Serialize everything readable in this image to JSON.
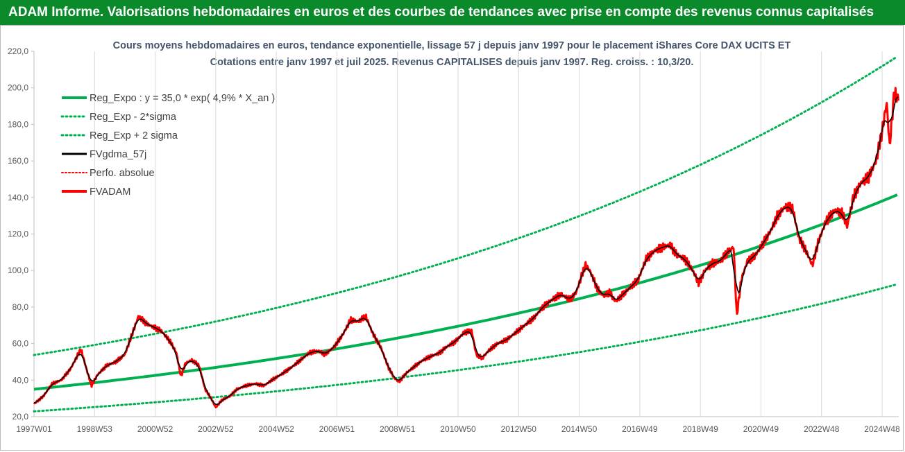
{
  "banner": {
    "text": "ADAM Informe. Valorisations hebdomadaires en euros et des courbes de tendances avec prise en compte des revenus connus capitalisés"
  },
  "chart_data": {
    "type": "line",
    "title_line1": "Cours moyens hebdomadaires en euros, tendance exponentielle, lissage 57 j depuis janv 1997  pour le placement iShares Core DAX UCITS ET",
    "title_line2": "Cotations entre janv 1997 et juil 2025.  Revenus CAPITALISES depuis janv 1997.  Reg. croiss. : 10,3/20.",
    "x_range": [
      1997.0,
      2025.55
    ],
    "x_ticks": [
      {
        "label": "1997W01",
        "x": 1997.0
      },
      {
        "label": "1998W53",
        "x": 1999.0
      },
      {
        "label": "2000W52",
        "x": 2001.0
      },
      {
        "label": "2002W52",
        "x": 2003.0
      },
      {
        "label": "2004W52",
        "x": 2005.0
      },
      {
        "label": "2006W51",
        "x": 2007.0
      },
      {
        "label": "2008W51",
        "x": 2009.0
      },
      {
        "label": "2010W50",
        "x": 2011.0
      },
      {
        "label": "2012W50",
        "x": 2013.0
      },
      {
        "label": "2014W50",
        "x": 2015.0
      },
      {
        "label": "2016W49",
        "x": 2017.0
      },
      {
        "label": "2018W49",
        "x": 2019.0
      },
      {
        "label": "2020W49",
        "x": 2021.0
      },
      {
        "label": "2022W48",
        "x": 2023.0
      },
      {
        "label": "2024W48",
        "x": 2025.0
      }
    ],
    "ylim": [
      20,
      220
    ],
    "y_ticks": [
      "20,0",
      "40,0",
      "60,0",
      "80,0",
      "100,0",
      "120,0",
      "140,0",
      "160,0",
      "180,0",
      "200,0",
      "220,0"
    ],
    "y_tick_values": [
      20,
      40,
      60,
      80,
      100,
      120,
      140,
      160,
      180,
      200,
      220
    ],
    "grid_x": true,
    "legend_position": "top-left",
    "legend": [
      {
        "key": "reg",
        "name": "Reg_Expo : y = 35,0 * exp( 4,9% *  X_an )"
      },
      {
        "key": "low",
        "name": "Reg_Exp - 2*sigma"
      },
      {
        "key": "high",
        "name": "Reg_Exp + 2 sigma"
      },
      {
        "key": "smooth",
        "name": "FVgdma_57j"
      },
      {
        "key": "perfo",
        "name": "Perfo. absolue"
      },
      {
        "key": "fvadam",
        "name": "FVADAM"
      }
    ],
    "colors": {
      "reg": "#00b050",
      "low": "#00b050",
      "high": "#00b050",
      "smooth": "#000000",
      "perfo": "#ff0000",
      "fvadam": "#ff0000"
    },
    "regression": {
      "a": 35.0,
      "b": 0.049,
      "low_factor": 0.654,
      "high_factor": 1.535
    },
    "fvadam_points": [
      [
        1997.0,
        27
      ],
      [
        1997.3,
        31
      ],
      [
        1997.6,
        38
      ],
      [
        1997.9,
        40
      ],
      [
        1998.2,
        46
      ],
      [
        1998.55,
        57
      ],
      [
        1998.75,
        45
      ],
      [
        1998.9,
        37
      ],
      [
        1999.1,
        43
      ],
      [
        1999.4,
        48
      ],
      [
        1999.7,
        50
      ],
      [
        2000.0,
        54
      ],
      [
        2000.3,
        68
      ],
      [
        2000.45,
        75
      ],
      [
        2000.7,
        71
      ],
      [
        2000.95,
        69
      ],
      [
        2001.2,
        67
      ],
      [
        2001.5,
        61
      ],
      [
        2001.7,
        55
      ],
      [
        2001.85,
        42
      ],
      [
        2002.0,
        49
      ],
      [
        2002.2,
        51
      ],
      [
        2002.45,
        48
      ],
      [
        2002.65,
        35
      ],
      [
        2002.85,
        30
      ],
      [
        2003.0,
        25
      ],
      [
        2003.2,
        29
      ],
      [
        2003.45,
        31
      ],
      [
        2003.7,
        35
      ],
      [
        2004.0,
        37
      ],
      [
        2004.3,
        38
      ],
      [
        2004.6,
        37
      ],
      [
        2004.85,
        40
      ],
      [
        2005.15,
        43
      ],
      [
        2005.5,
        47
      ],
      [
        2005.8,
        51
      ],
      [
        2006.1,
        55
      ],
      [
        2006.4,
        56
      ],
      [
        2006.6,
        54
      ],
      [
        2006.9,
        58
      ],
      [
        2007.2,
        65
      ],
      [
        2007.45,
        73
      ],
      [
        2007.7,
        72
      ],
      [
        2007.95,
        75
      ],
      [
        2008.2,
        65
      ],
      [
        2008.45,
        58
      ],
      [
        2008.7,
        47
      ],
      [
        2008.9,
        41
      ],
      [
        2009.05,
        39
      ],
      [
        2009.3,
        44
      ],
      [
        2009.6,
        48
      ],
      [
        2009.85,
        51
      ],
      [
        2010.1,
        53
      ],
      [
        2010.4,
        55
      ],
      [
        2010.6,
        58
      ],
      [
        2010.9,
        61
      ],
      [
        2011.2,
        66
      ],
      [
        2011.45,
        67
      ],
      [
        2011.6,
        54
      ],
      [
        2011.8,
        52
      ],
      [
        2012.0,
        56
      ],
      [
        2012.3,
        60
      ],
      [
        2012.6,
        62
      ],
      [
        2012.9,
        66
      ],
      [
        2013.2,
        70
      ],
      [
        2013.5,
        74
      ],
      [
        2013.8,
        80
      ],
      [
        2014.1,
        84
      ],
      [
        2014.4,
        87
      ],
      [
        2014.7,
        84
      ],
      [
        2014.9,
        88
      ],
      [
        2015.2,
        103
      ],
      [
        2015.35,
        100
      ],
      [
        2015.6,
        90
      ],
      [
        2015.8,
        86
      ],
      [
        2016.0,
        88
      ],
      [
        2016.2,
        83
      ],
      [
        2016.45,
        87
      ],
      [
        2016.7,
        91
      ],
      [
        2016.95,
        95
      ],
      [
        2017.2,
        106
      ],
      [
        2017.5,
        111
      ],
      [
        2017.8,
        113
      ],
      [
        2018.0,
        114
      ],
      [
        2018.2,
        109
      ],
      [
        2018.5,
        106
      ],
      [
        2018.75,
        100
      ],
      [
        2018.95,
        93
      ],
      [
        2019.15,
        100
      ],
      [
        2019.4,
        104
      ],
      [
        2019.65,
        105
      ],
      [
        2019.9,
        110
      ],
      [
        2020.1,
        113
      ],
      [
        2020.2,
        75
      ],
      [
        2020.35,
        95
      ],
      [
        2020.55,
        105
      ],
      [
        2020.8,
        108
      ],
      [
        2021.0,
        113
      ],
      [
        2021.3,
        121
      ],
      [
        2021.55,
        130
      ],
      [
        2021.8,
        135
      ],
      [
        2022.05,
        134
      ],
      [
        2022.25,
        118
      ],
      [
        2022.45,
        112
      ],
      [
        2022.7,
        103
      ],
      [
        2022.9,
        116
      ],
      [
        2023.15,
        127
      ],
      [
        2023.45,
        133
      ],
      [
        2023.7,
        131
      ],
      [
        2023.85,
        124
      ],
      [
        2024.05,
        140
      ],
      [
        2024.3,
        148
      ],
      [
        2024.55,
        151
      ],
      [
        2024.8,
        160
      ],
      [
        2025.0,
        176
      ],
      [
        2025.15,
        192
      ],
      [
        2025.25,
        168
      ],
      [
        2025.4,
        197
      ],
      [
        2025.55,
        194
      ]
    ]
  }
}
